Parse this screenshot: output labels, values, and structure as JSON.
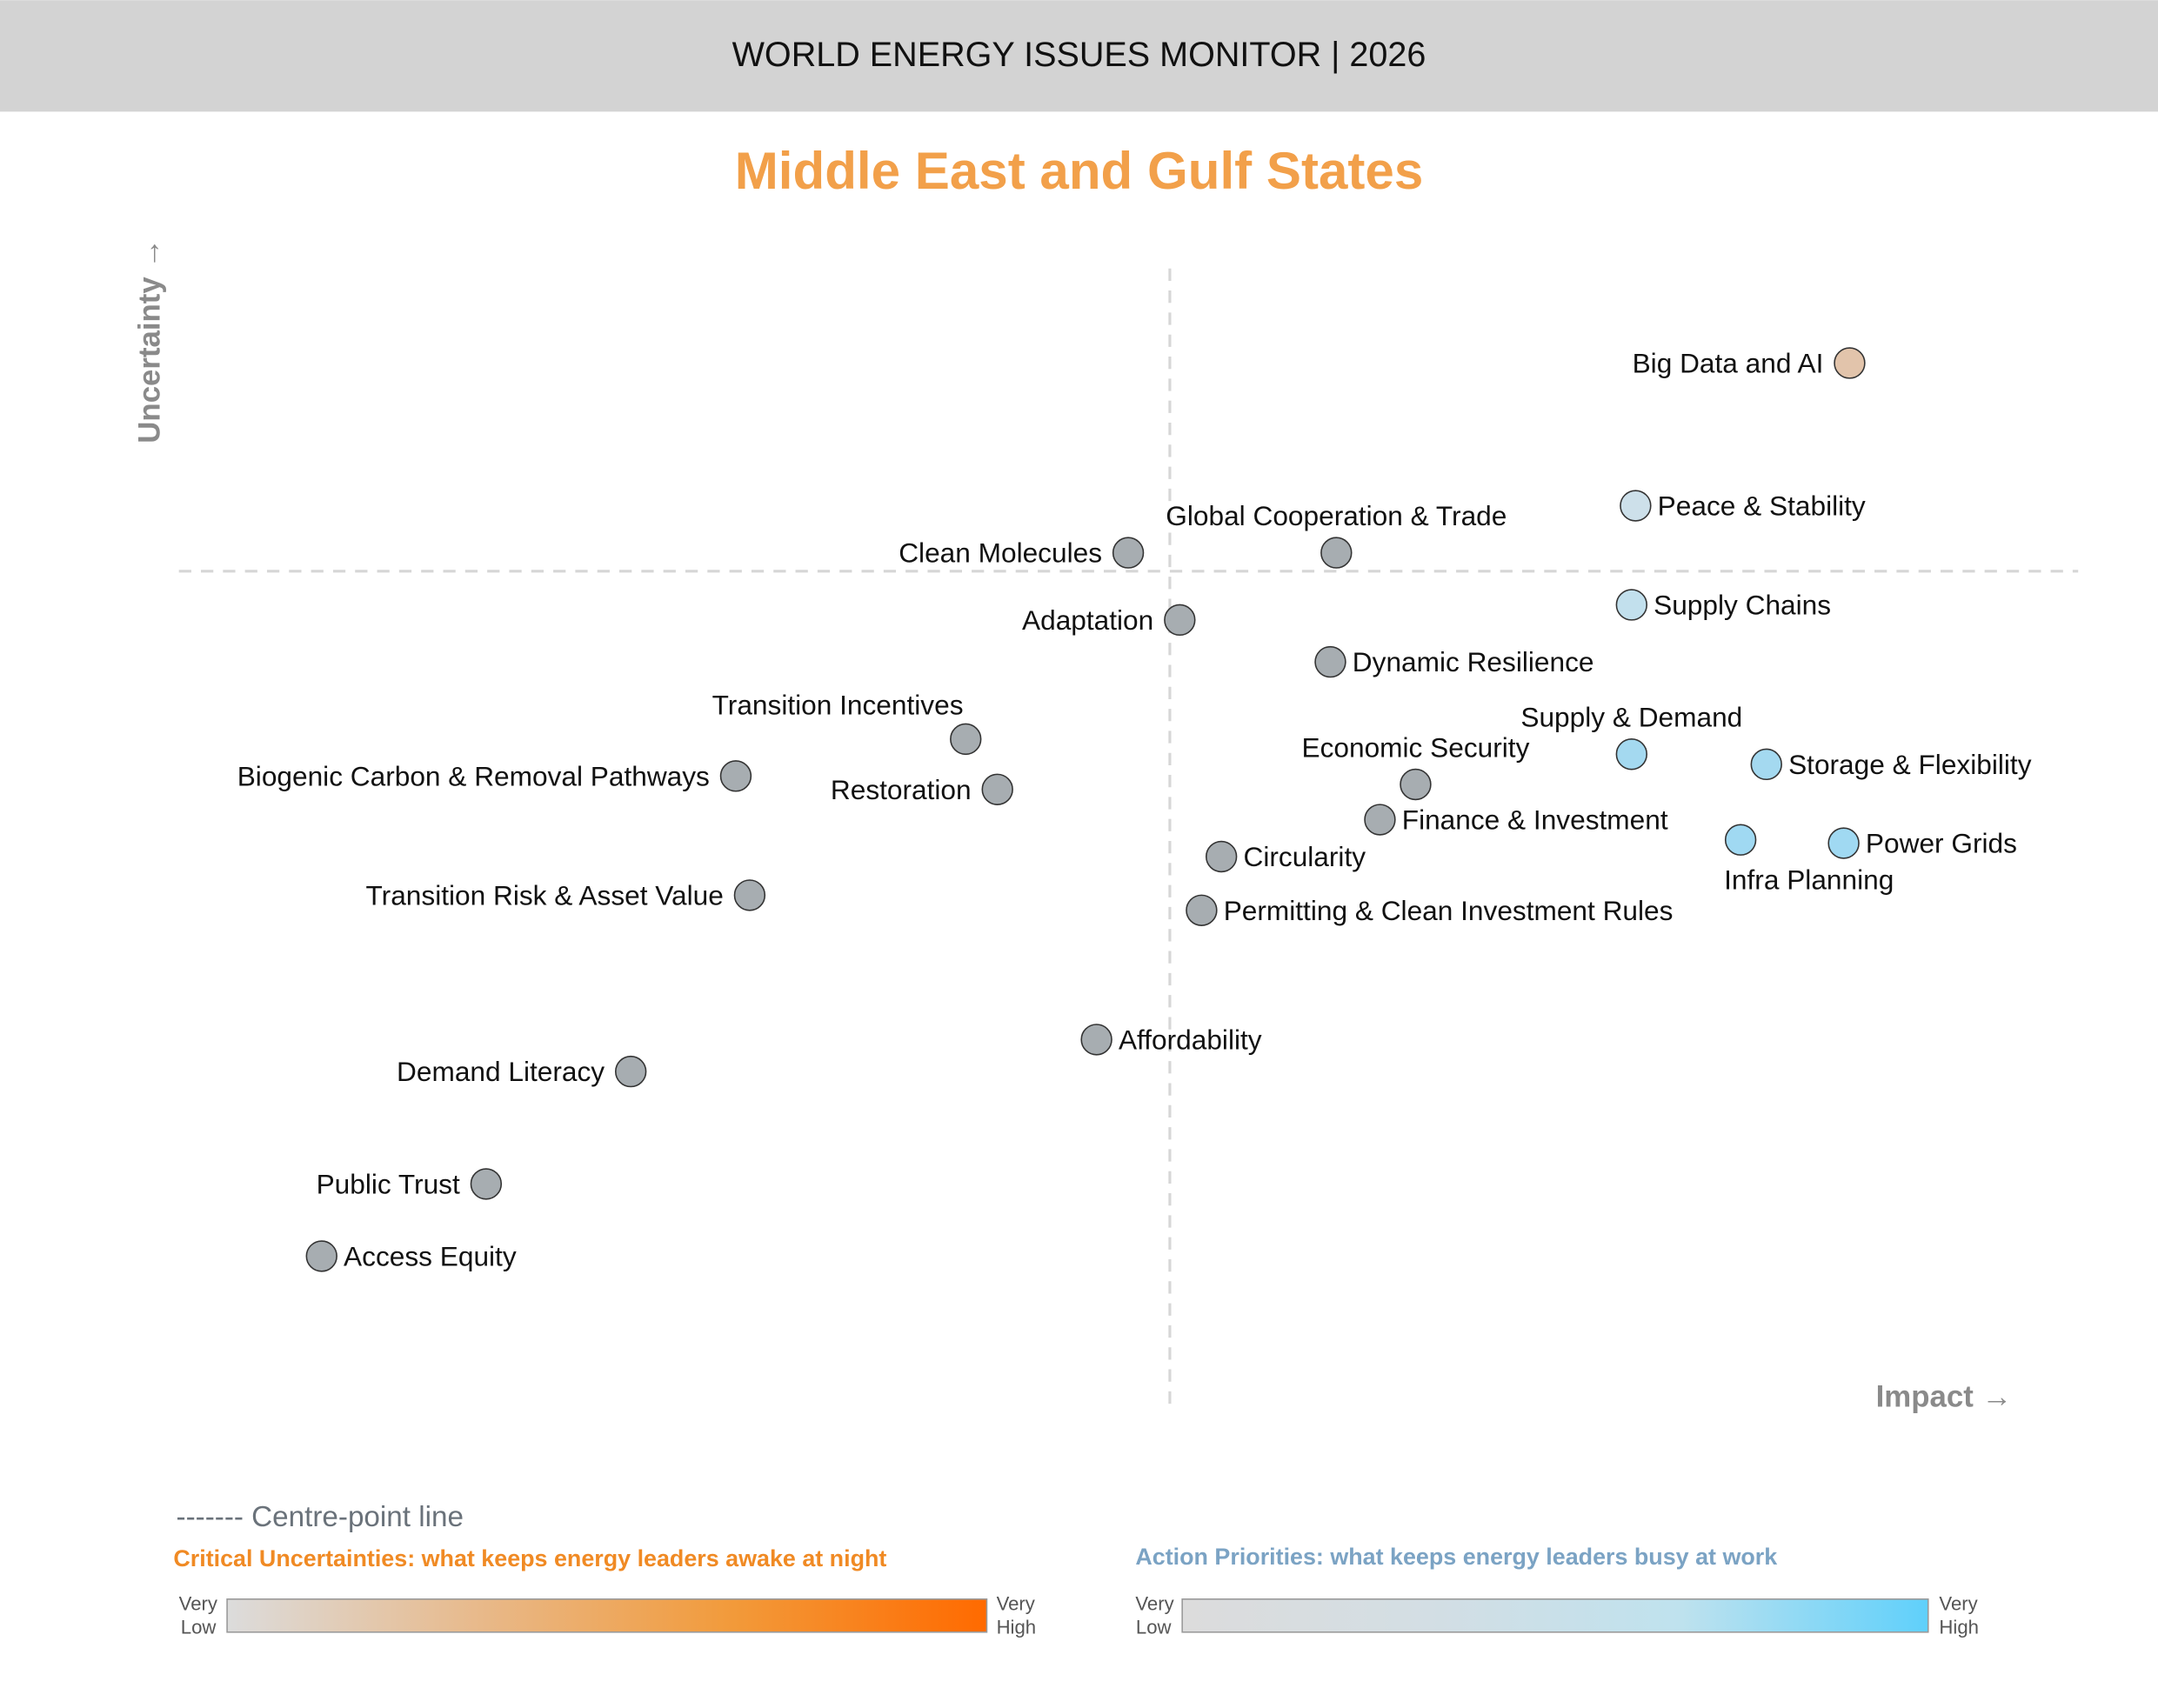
{
  "header": {
    "title": "WORLD ENERGY ISSUES MONITOR | 2026"
  },
  "chart_data": {
    "type": "scatter",
    "title": "Middle East and Gulf States",
    "xlabel": "Impact →",
    "ylabel": "Uncertainty →",
    "xlim": [
      0,
      10
    ],
    "ylim": [
      0,
      10
    ],
    "centre": {
      "x": 5,
      "y": 5
    },
    "grid": false,
    "points": [
      {
        "label": "Big Data and AI",
        "x": 8.43,
        "y": 6.24,
        "color": "#e2c4ab",
        "label_position": "left"
      },
      {
        "label": "Peace & Stability",
        "x": 7.35,
        "y": 5.39,
        "color": "#cde0ea",
        "label_position": "right"
      },
      {
        "label": "Supply Chains",
        "x": 7.33,
        "y": 4.8,
        "color": "#c2e0ed",
        "label_position": "right"
      },
      {
        "label": "Supply & Demand",
        "x": 7.33,
        "y": 3.91,
        "color": "#a4d9f0",
        "label_position": "above"
      },
      {
        "label": "Storage & Flexibility",
        "x": 8.01,
        "y": 3.85,
        "color": "#a4d9f0",
        "label_position": "right"
      },
      {
        "label": "Infra Planning",
        "x": 7.88,
        "y": 3.4,
        "color": "#a0d9f2",
        "label_position": "below"
      },
      {
        "label": "Power Grids",
        "x": 8.4,
        "y": 3.38,
        "color": "#a0d9f2",
        "label_position": "right"
      },
      {
        "label": "Clean Molecules",
        "x": 4.79,
        "y": 5.11,
        "color": "#a7adb1",
        "label_position": "left"
      },
      {
        "label": "Global Cooperation & Trade",
        "x": 5.84,
        "y": 5.11,
        "color": "#a7adb1",
        "label_position": "above"
      },
      {
        "label": "Adaptation",
        "x": 5.05,
        "y": 4.71,
        "color": "#a7adb1",
        "label_position": "left"
      },
      {
        "label": "Dynamic Resilience",
        "x": 5.81,
        "y": 4.46,
        "color": "#a7adb1",
        "label_position": "right"
      },
      {
        "label": "Economic Security",
        "x": 6.24,
        "y": 3.73,
        "color": "#a7adb1",
        "label_position": "above"
      },
      {
        "label": "Finance & Investment",
        "x": 6.06,
        "y": 3.52,
        "color": "#a7adb1",
        "label_position": "right"
      },
      {
        "label": "Circularity",
        "x": 5.26,
        "y": 3.3,
        "color": "#a7adb1",
        "label_position": "right"
      },
      {
        "label": "Permitting & Clean Investment Rules",
        "x": 5.16,
        "y": 2.98,
        "color": "#a7adb1",
        "label_position": "right"
      },
      {
        "label": "Transition Incentives",
        "x": 3.97,
        "y": 4.0,
        "color": "#a7adb1",
        "label_position": "above-left"
      },
      {
        "label": "Restoration",
        "x": 4.13,
        "y": 3.7,
        "color": "#a7adb1",
        "label_position": "left"
      },
      {
        "label": "Biogenic Carbon & Removal Pathways",
        "x": 2.81,
        "y": 3.78,
        "color": "#a7adb1",
        "label_position": "left"
      },
      {
        "label": "Transition Risk & Asset Value",
        "x": 2.88,
        "y": 3.07,
        "color": "#a7adb1",
        "label_position": "left"
      },
      {
        "label": "Affordability",
        "x": 4.63,
        "y": 2.21,
        "color": "#a7adb1",
        "label_position": "right"
      },
      {
        "label": "Demand Literacy",
        "x": 2.28,
        "y": 2.02,
        "color": "#a7adb1",
        "label_position": "left"
      },
      {
        "label": "Public Trust",
        "x": 1.55,
        "y": 1.35,
        "color": "#a7adb1",
        "label_position": "left"
      },
      {
        "label": "Access Equity",
        "x": 0.72,
        "y": 0.92,
        "color": "#a7adb1",
        "label_position": "right"
      }
    ]
  },
  "legend": {
    "centre_line": "------- Centre-point line",
    "uncertainties": {
      "title": "Critical Uncertainties: what keeps energy leaders awake at night",
      "low": [
        "Very",
        "Low"
      ],
      "high": [
        "Very",
        "High"
      ],
      "colors": [
        "#dcdcdc",
        "#e8b98a",
        "#f29a3a",
        "#ff6a00"
      ],
      "title_color": "#f08a24"
    },
    "priorities": {
      "title": "Action Priorities: what keeps energy leaders busy at work",
      "low": [
        "Very",
        "Low"
      ],
      "high": [
        "Very",
        "High"
      ],
      "colors": [
        "#dcdcdc",
        "#d3dee4",
        "#bfe2ee",
        "#5fd0fb"
      ],
      "title_color": "#7ba3c4"
    }
  },
  "colors": {
    "title": "#f2a04a",
    "header_bg": "#d3d3d3",
    "axis_label": "#8a8a8a"
  }
}
